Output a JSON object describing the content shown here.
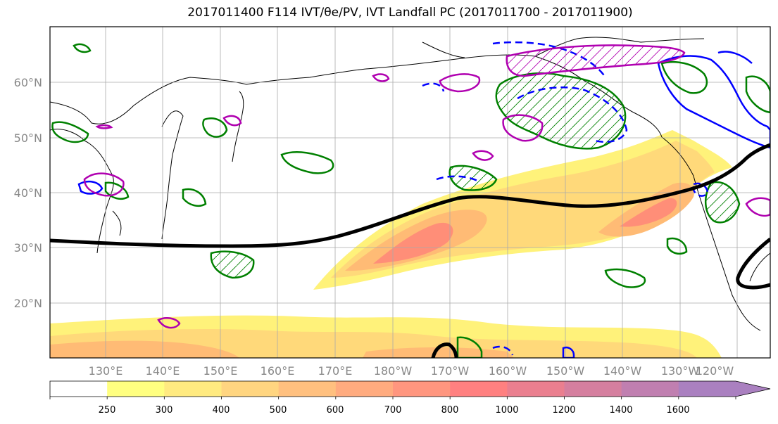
{
  "title": "2017011400 F114 IVT/θe/PV, IVT Landfall PC (2017011700 - 2017011900)",
  "lat_labels": [
    "60°N",
    "50°N",
    "40°N",
    "30°N",
    "20°N"
  ],
  "lon_labels": [
    "130°E",
    "140°E",
    "150°E",
    "160°E",
    "170°E",
    "180°W",
    "170°W",
    "160°W",
    "150°W",
    "140°W",
    "130°W",
    "120°W"
  ],
  "colorbar": {
    "ticks": [
      "250",
      "300",
      "400",
      "500",
      "600",
      "700",
      "800",
      "1000",
      "1200",
      "1400",
      "1600"
    ],
    "colors": [
      "#ffffff",
      "#ffff80",
      "#ffea80",
      "#ffd580",
      "#ffc07f",
      "#ffab7f",
      "#ff967f",
      "#ff8080",
      "#ea7f8f",
      "#d57f9f",
      "#c07fb0",
      "#aa80c0"
    ]
  },
  "styles": {
    "ivt_colors": [
      "#fff27a",
      "#ffd97a",
      "#ffbb75",
      "#ff8e78"
    ],
    "pv_contour": "#000000",
    "positive_anomaly": "#008000",
    "negative_anomaly": "#0000ff",
    "theta_contour": "#b000b0",
    "grid": "#aaaaaa"
  }
}
